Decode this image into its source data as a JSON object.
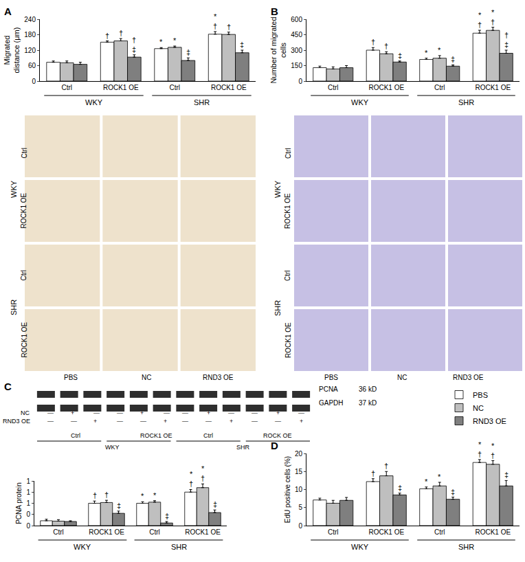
{
  "chart_data": [
    {
      "panel": "A",
      "type": "bar",
      "y_label": [
        "Migrated",
        "distance (μm)"
      ],
      "groups": [
        "WKY",
        "WKY",
        "SHR",
        "SHR"
      ],
      "categories": [
        "Ctrl",
        "ROCK1 OE",
        "Ctrl",
        "ROCK1 OE"
      ],
      "ylim": [
        0,
        240
      ],
      "yticks": [
        0,
        60,
        120,
        180,
        240
      ],
      "series": [
        {
          "name": "PBS",
          "color": "#ffffff",
          "values": [
            73,
            151,
            126,
            182
          ],
          "errors": [
            5,
            5,
            4,
            10
          ],
          "marks": [
            null,
            "†",
            "*",
            [
              "*",
              "†"
            ]
          ]
        },
        {
          "name": "NC",
          "color": "#bfbfbf",
          "values": [
            71,
            156,
            131,
            181
          ],
          "errors": [
            7,
            9,
            5,
            9
          ],
          "marks": [
            null,
            "†",
            "*",
            "†"
          ]
        },
        {
          "name": "RND3 OE",
          "color": "#7f7f7f",
          "values": [
            65,
            93,
            80,
            110
          ],
          "errors": [
            8,
            9,
            10,
            10
          ],
          "marks": [
            null,
            [
              "†",
              "‡"
            ],
            "‡",
            "‡"
          ]
        }
      ]
    },
    {
      "panel": "B",
      "type": "bar",
      "y_label": [
        "Number of migrated",
        "cells"
      ],
      "groups": [
        "WKY",
        "WKY",
        "SHR",
        "SHR"
      ],
      "categories": [
        "Ctrl",
        "ROCK1 OE",
        "Ctrl",
        "ROCK1 OE"
      ],
      "ylim": [
        0,
        600
      ],
      "yticks": [
        0,
        150,
        300,
        450,
        600
      ],
      "series": [
        {
          "name": "PBS",
          "color": "#ffffff",
          "values": [
            130,
            300,
            210,
            465
          ],
          "errors": [
            15,
            25,
            12,
            28
          ],
          "marks": [
            null,
            "†",
            "*",
            [
              "*",
              "†"
            ]
          ]
        },
        {
          "name": "NC",
          "color": "#bfbfbf",
          "values": [
            118,
            265,
            222,
            492
          ],
          "errors": [
            20,
            20,
            25,
            30
          ],
          "marks": [
            null,
            "†",
            "*",
            [
              "*",
              "†"
            ]
          ]
        },
        {
          "name": "RND3 OE",
          "color": "#7f7f7f",
          "values": [
            130,
            185,
            145,
            270
          ],
          "errors": [
            20,
            10,
            12,
            30
          ],
          "marks": [
            null,
            "‡",
            "‡",
            [
              "†",
              "‡"
            ]
          ]
        }
      ]
    },
    {
      "type": "bar",
      "y_label": [
        "PCNA protein"
      ],
      "legend": "right",
      "groups": [
        "WKY",
        "WKY",
        "SHR",
        "SHR"
      ],
      "categories": [
        "Ctrl",
        "ROCK1 OE",
        "Ctrl",
        "ROCK1 OE"
      ],
      "ylim": [
        0,
        1.2
      ],
      "yticks": [
        0,
        {
          "value": 0.3,
          "label": "0"
        },
        {
          "value": 0.6,
          "label": "1"
        },
        {
          "value": 0.9,
          "label": "1"
        },
        {
          "value": 1.2,
          "label": "1"
        }
      ],
      "series": [
        {
          "name": "PBS",
          "color": "#ffffff",
          "values": [
            0.13,
            0.6,
            0.6,
            0.9
          ],
          "errors": [
            0.04,
            0.06,
            0.04,
            0.07
          ],
          "marks": [
            null,
            "†",
            "*",
            [
              "*",
              "†"
            ]
          ]
        },
        {
          "name": "NC",
          "color": "#bfbfbf",
          "values": [
            0.12,
            0.62,
            0.63,
            1.02
          ],
          "errors": [
            0.04,
            0.06,
            0.04,
            0.1
          ],
          "marks": [
            null,
            "†",
            "*",
            [
              "*",
              "†"
            ]
          ]
        },
        {
          "name": "RND3 OE",
          "color": "#7f7f7f",
          "values": [
            0.11,
            0.33,
            0.07,
            0.35
          ],
          "errors": [
            0.02,
            0.06,
            0.04,
            0.07
          ],
          "marks": [
            null,
            "‡",
            "‡",
            "‡"
          ]
        }
      ]
    },
    {
      "panel": "D",
      "type": "bar",
      "y_label": [
        "EdU positive cells (%)"
      ],
      "groups": [
        "WKY",
        "WKY",
        "SHR",
        "SHR"
      ],
      "categories": [
        "Ctrl",
        "ROCK1 OE",
        "Ctrl",
        "ROCK1 OE"
      ],
      "ylim": [
        0,
        20
      ],
      "yticks": [
        0,
        5,
        10,
        15,
        20
      ],
      "series": [
        {
          "name": "PBS",
          "color": "#ffffff",
          "values": [
            7.1,
            12.2,
            10.2,
            17.5
          ],
          "errors": [
            0.5,
            0.8,
            0.5,
            0.8
          ],
          "marks": [
            null,
            "†",
            "*",
            [
              "*",
              "†"
            ]
          ]
        },
        {
          "name": "NC",
          "color": "#bfbfbf",
          "values": [
            6.2,
            13.8,
            11.0,
            17.0
          ],
          "errors": [
            0.8,
            1.2,
            1.0,
            1.0
          ],
          "marks": [
            null,
            "†",
            "*",
            [
              "*",
              "†"
            ]
          ]
        },
        {
          "name": "RND3 OE",
          "color": "#7f7f7f",
          "values": [
            7.0,
            8.5,
            7.3,
            11.0
          ],
          "errors": [
            0.8,
            0.5,
            0.6,
            1.5
          ],
          "marks": [
            null,
            "‡",
            "‡",
            "‡"
          ]
        }
      ]
    }
  ],
  "micrographs": {
    "columns": [
      "PBS",
      "NC",
      "RND3 OE"
    ],
    "row_groups": [
      {
        "label": "WKY",
        "rows": [
          "Ctrl",
          "ROCK1 OE"
        ]
      },
      {
        "label": "SHR",
        "rows": [
          "Ctrl",
          "ROCK1 OE"
        ]
      }
    ],
    "panels": [
      {
        "color": "#eee2cc"
      },
      {
        "color": "#c6c0e4"
      }
    ]
  },
  "blot": {
    "panel": "C",
    "bands": [
      {
        "label": "PCNA",
        "size": "36 kD"
      },
      {
        "label": "GAPDH",
        "size": "37 kD"
      }
    ],
    "conditions": [
      {
        "label": "NC",
        "lanes": [
          "—",
          "+",
          "—",
          "—",
          "+",
          "—",
          "—",
          "+",
          "—",
          "—",
          "+",
          "—"
        ]
      },
      {
        "label": "RND3 OE",
        "lanes": [
          "—",
          "—",
          "+",
          "—",
          "—",
          "+",
          "—",
          "—",
          "+",
          "—",
          "—",
          "+"
        ]
      }
    ],
    "lane_groups": [
      "Ctrl",
      "ROCK1 OE",
      "Ctrl",
      "ROCK OE"
    ],
    "groups": [
      "WKY",
      "SHR"
    ]
  }
}
